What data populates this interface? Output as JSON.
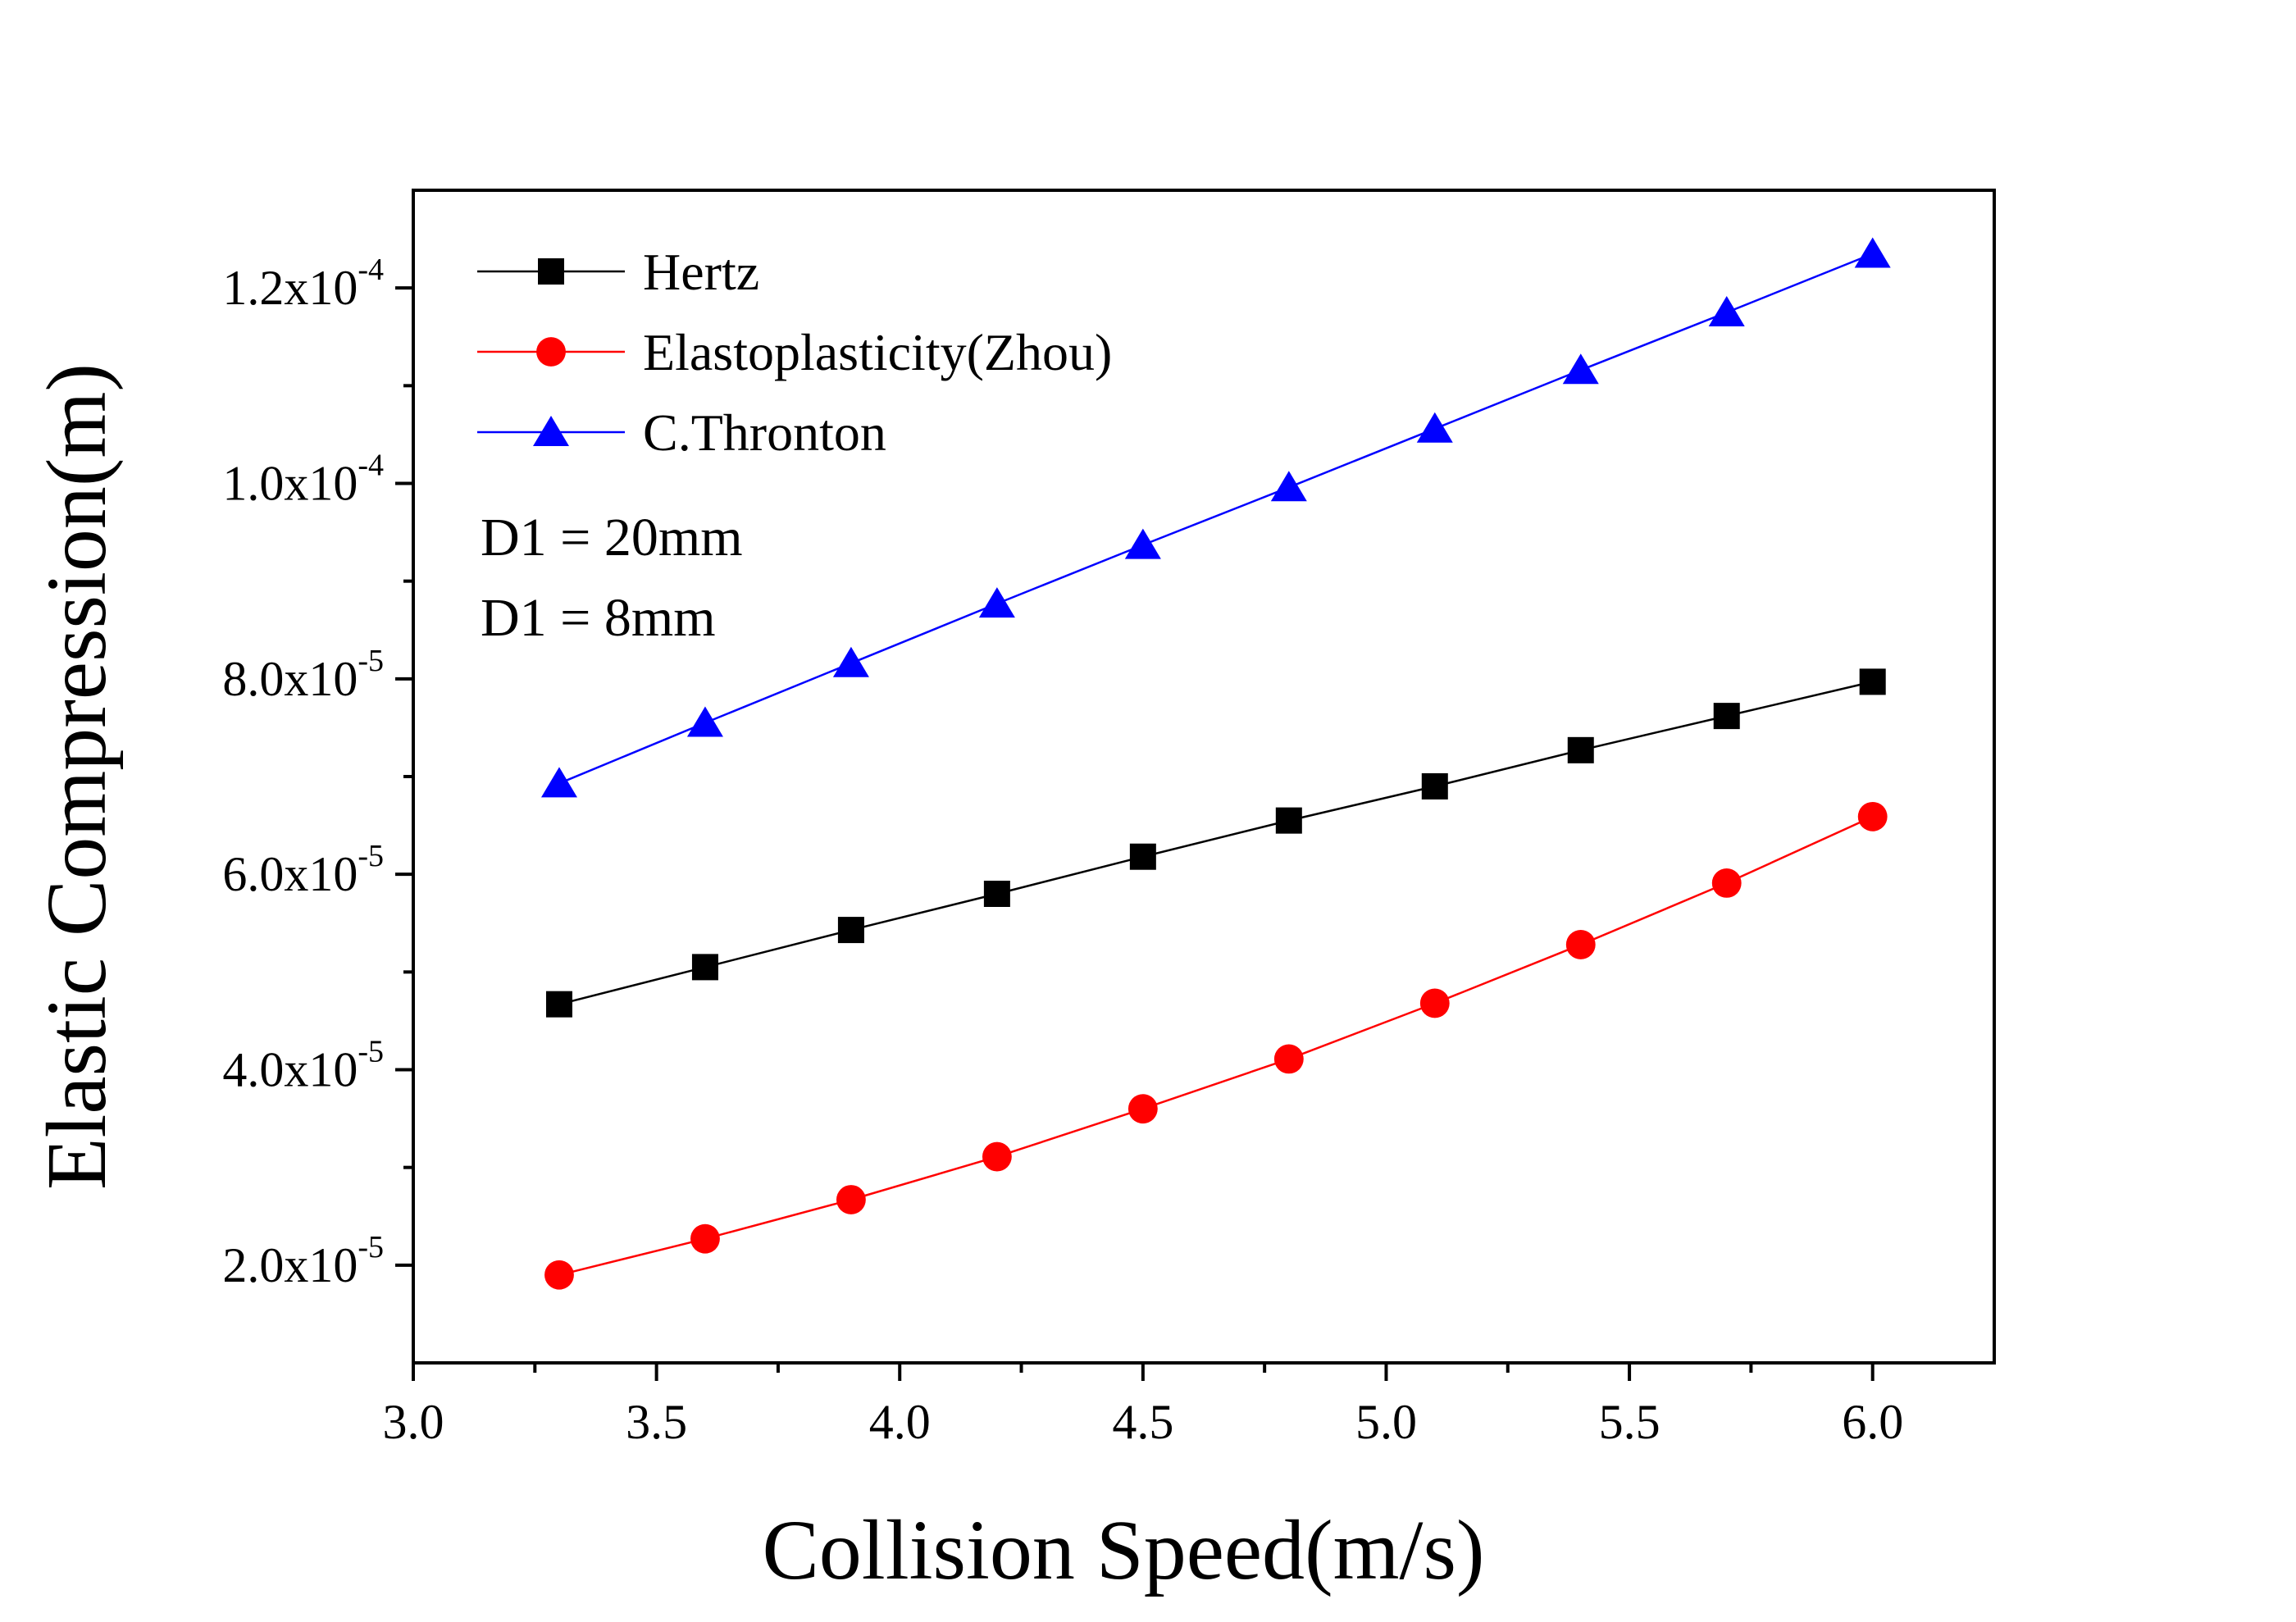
{
  "chart_data": {
    "type": "line",
    "xlabel": "Collision Speed(m/s)",
    "ylabel": "Elastic Compression(m)",
    "xlim": [
      3.0,
      6.25
    ],
    "ylim": [
      1e-05,
      0.00013
    ],
    "x_ticks": [
      3.0,
      3.5,
      4.0,
      4.5,
      5.0,
      5.5,
      6.0
    ],
    "x_tick_labels": [
      "3.0",
      "3.5",
      "4.0",
      "4.5",
      "5.0",
      "5.5",
      "6.0"
    ],
    "y_ticks": [
      {
        "value": 2e-05,
        "mantissa": "2.0x10",
        "exponent": "-5"
      },
      {
        "value": 4e-05,
        "mantissa": "4.0x10",
        "exponent": "-5"
      },
      {
        "value": 6e-05,
        "mantissa": "6.0x10",
        "exponent": "-5"
      },
      {
        "value": 8e-05,
        "mantissa": "8.0x10",
        "exponent": "-5"
      },
      {
        "value": 0.0001,
        "mantissa": "1.0x10",
        "exponent": "-4"
      },
      {
        "value": 0.00012,
        "mantissa": "1.2x10",
        "exponent": "-4"
      }
    ],
    "x": [
      3.3,
      3.6,
      3.9,
      4.2,
      4.5,
      4.8,
      5.1,
      5.4,
      5.7,
      6.0
    ],
    "series": [
      {
        "name": "Hertz",
        "color": "#000000",
        "marker": "square",
        "values": [
          4.67e-05,
          5.05e-05,
          5.43e-05,
          5.8e-05,
          6.18e-05,
          6.55e-05,
          6.9e-05,
          7.27e-05,
          7.62e-05,
          7.97e-05
        ]
      },
      {
        "name": "Elastoplasticity(Zhou)",
        "color": "#ff0000",
        "marker": "circle",
        "values": [
          1.9e-05,
          2.27e-05,
          2.67e-05,
          3.11e-05,
          3.6e-05,
          4.11e-05,
          4.68e-05,
          5.28e-05,
          5.91e-05,
          6.59e-05
        ]
      },
      {
        "name": "C.Thronton",
        "color": "#0000ff",
        "marker": "triangle",
        "values": [
          6.93e-05,
          7.55e-05,
          8.16e-05,
          8.77e-05,
          9.37e-05,
          9.96e-05,
          0.0001056,
          0.0001116,
          0.0001175,
          0.0001235
        ]
      }
    ],
    "annotations": [
      "D1 = 20mm",
      "D1 = 8mm"
    ],
    "legend_position": "top-left",
    "grid": false
  }
}
